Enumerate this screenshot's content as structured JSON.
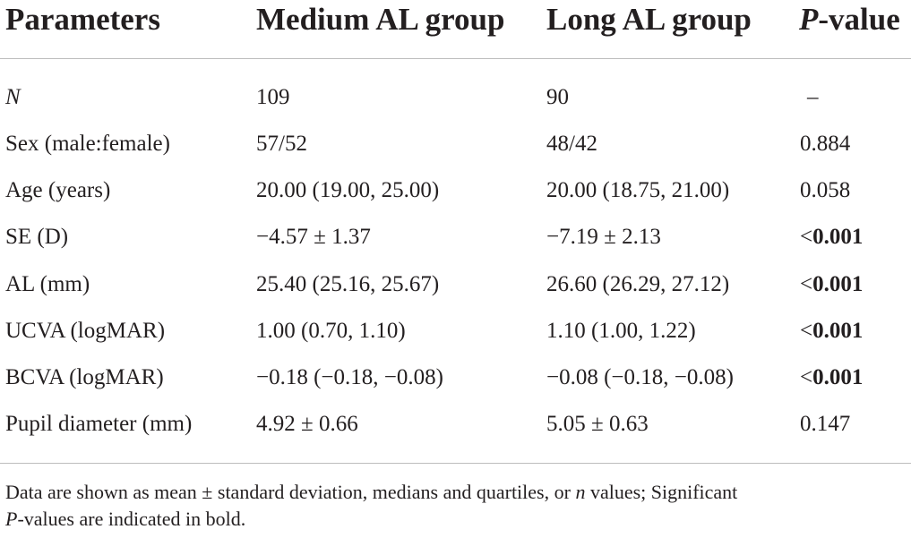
{
  "header": {
    "col1": "Parameters",
    "col2": "Medium AL group",
    "col3": "Long AL group",
    "col4_italic": "P",
    "col4_rest": "-value"
  },
  "rows": [
    {
      "param": "N",
      "param_italic": true,
      "medium": "109",
      "long": "90",
      "p": "–",
      "p_bold": false
    },
    {
      "param": "Sex (male:female)",
      "medium": "57/52",
      "long": "48/42",
      "p": "0.884",
      "p_bold": false
    },
    {
      "param": "Age (years)",
      "medium": "20.00 (19.00, 25.00)",
      "long": "20.00 (18.75, 21.00)",
      "p": "0.058",
      "p_bold": false
    },
    {
      "param": "SE (D)",
      "medium": "−4.57 ± 1.37",
      "long": "−7.19 ± 2.13",
      "p_prefix": "<",
      "p": "0.001",
      "p_bold": true
    },
    {
      "param": "AL (mm)",
      "medium": "25.40 (25.16, 25.67)",
      "long": "26.60 (26.29, 27.12)",
      "p_prefix": "<",
      "p": "0.001",
      "p_bold": true
    },
    {
      "param": "UCVA (logMAR)",
      "medium": "1.00 (0.70, 1.10)",
      "long": "1.10 (1.00, 1.22)",
      "p_prefix": "<",
      "p": "0.001",
      "p_bold": true
    },
    {
      "param": "BCVA (logMAR)",
      "medium": "−0.18 (−0.18, −0.08)",
      "long": "−0.08 (−0.18, −0.08)",
      "p_prefix": "<",
      "p": "0.001",
      "p_bold": true
    },
    {
      "param": "Pupil diameter (mm)",
      "medium": "4.92 ± 0.66",
      "long": "5.05 ± 0.63",
      "p": "0.147",
      "p_bold": false
    }
  ],
  "footnote": {
    "part1": "Data are shown as mean ± standard deviation, medians and quartiles, or ",
    "part1_italic": "n",
    "part2": " values; Significant",
    "part3_italic": "P",
    "part4": "-values are indicated in bold."
  }
}
